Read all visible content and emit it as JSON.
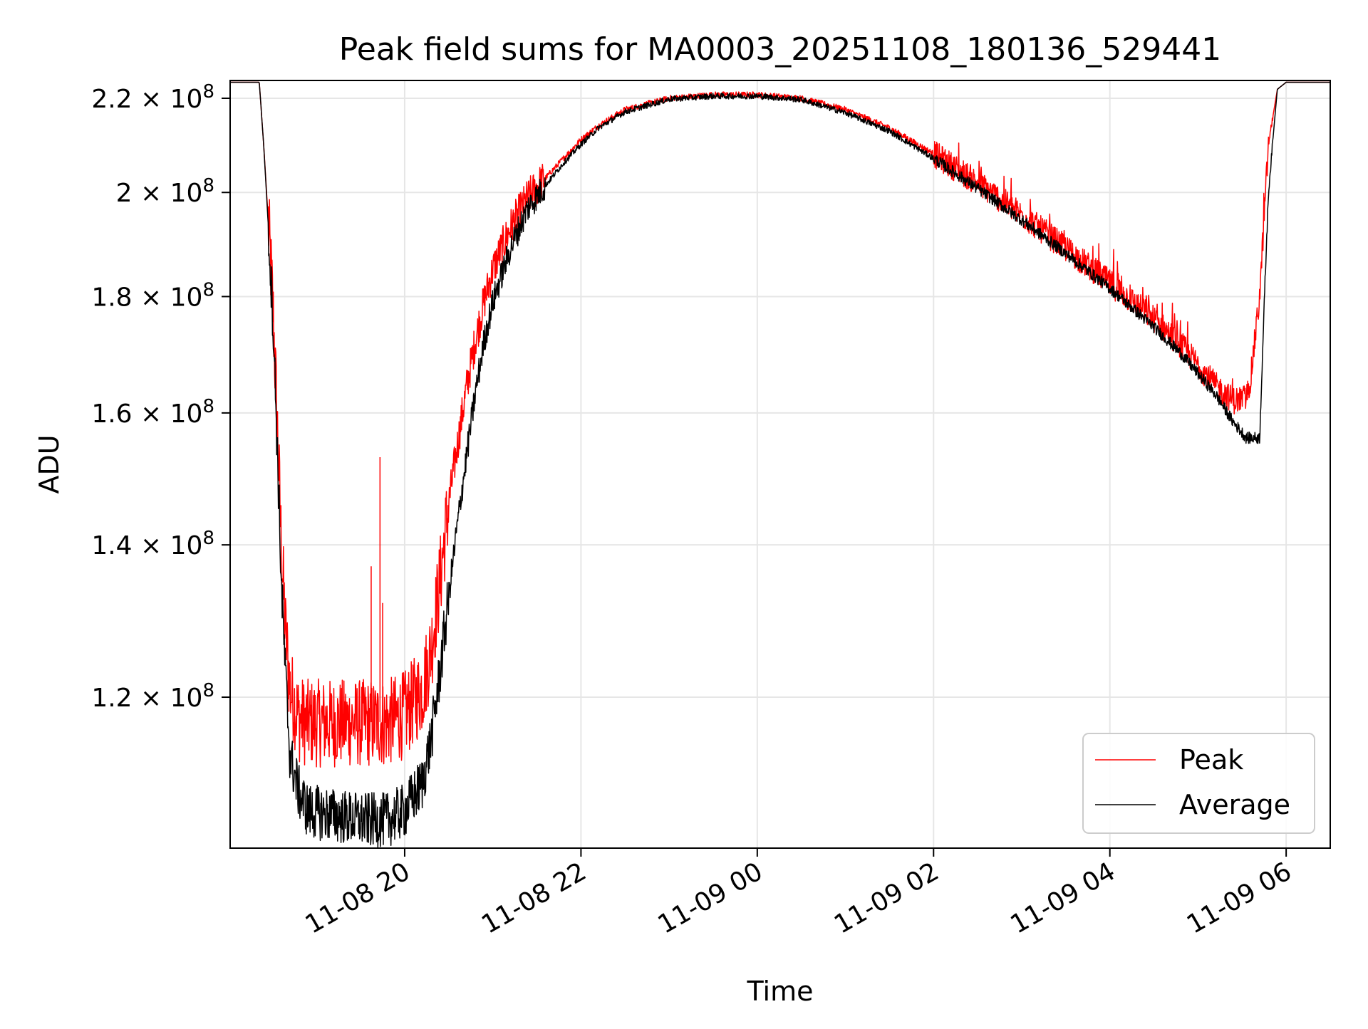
{
  "chart_data": {
    "type": "line",
    "title": "Peak field sums for MA0003_20251108_180136_529441",
    "xlabel": "Time",
    "ylabel": "ADU",
    "y_scale": "log",
    "ylim": [
      103000000,
      224000000
    ],
    "xlim_hours_from_11_08_00": [
      18.02,
      30.5
    ],
    "grid": true,
    "legend_location": "lower right",
    "x_ticks": [
      {
        "hours": 20,
        "label": "11-08 20"
      },
      {
        "hours": 22,
        "label": "11-08 22"
      },
      {
        "hours": 24,
        "label": "11-09 00"
      },
      {
        "hours": 26,
        "label": "11-09 02"
      },
      {
        "hours": 28,
        "label": "11-09 04"
      },
      {
        "hours": 30,
        "label": "11-09 06"
      }
    ],
    "y_ticks": [
      {
        "value": 120000000,
        "mantissa": "1.2",
        "base": "10",
        "exp": "8"
      },
      {
        "value": 140000000,
        "mantissa": "1.4",
        "base": "10",
        "exp": "8"
      },
      {
        "value": 160000000,
        "mantissa": "1.6",
        "base": "10",
        "exp": "8"
      },
      {
        "value": 180000000,
        "mantissa": "1.8",
        "base": "10",
        "exp": "8"
      },
      {
        "value": 200000000,
        "mantissa": "2",
        "base": "10",
        "exp": "8"
      },
      {
        "value": 220000000,
        "mantissa": "2.2",
        "base": "10",
        "exp": "8"
      }
    ],
    "series": [
      {
        "name": "Peak",
        "color": "#ff0000",
        "hours": [
          18.0,
          18.35,
          18.4,
          18.5,
          18.6,
          18.65,
          18.7,
          18.8,
          18.9,
          19.2,
          19.5,
          19.8,
          20.0,
          20.2,
          20.3,
          20.4,
          20.5,
          20.6,
          20.7,
          20.8,
          20.9,
          21.0,
          21.2,
          21.4,
          21.6,
          21.8,
          22.0,
          22.2,
          22.5,
          23.0,
          23.5,
          24.0,
          24.5,
          25.0,
          25.5,
          26.0,
          26.5,
          27.0,
          27.5,
          28.0,
          28.5,
          28.8,
          29.0,
          29.2,
          29.4,
          29.55,
          29.6,
          29.7,
          29.8,
          29.9,
          30.0,
          30.1,
          30.5
        ],
        "values": [
          223600000,
          223600000,
          210000000,
          180000000,
          140000000,
          128000000,
          121000000,
          117500000,
          117000000,
          117000000,
          117000000,
          117000000,
          118000000,
          121000000,
          126000000,
          135000000,
          146000000,
          155000000,
          164000000,
          172000000,
          179000000,
          185000000,
          193000000,
          199000000,
          203000000,
          207000000,
          211000000,
          214000000,
          217500000,
          220000000,
          220800000,
          220800000,
          220000000,
          217500000,
          213500000,
          208000000,
          202000000,
          195500000,
          189000000,
          182500000,
          176000000,
          171500000,
          168000000,
          164500000,
          162000000,
          162500000,
          166000000,
          180000000,
          210000000,
          222000000,
          223600000,
          223600000,
          223600000
        ],
        "spikes": [
          {
            "hours": 19.72,
            "value": 153000000
          },
          {
            "hours": 19.62,
            "value": 137000000
          },
          {
            "hours": 19.75,
            "value": 132000000
          }
        ]
      },
      {
        "name": "Average",
        "color": "#000000",
        "hours": [
          18.0,
          18.35,
          18.4,
          18.5,
          18.6,
          18.65,
          18.7,
          18.8,
          18.9,
          19.2,
          19.5,
          19.8,
          20.0,
          20.2,
          20.3,
          20.4,
          20.5,
          20.6,
          20.7,
          20.8,
          20.9,
          21.0,
          21.2,
          21.4,
          21.6,
          21.8,
          22.0,
          22.2,
          22.5,
          23.0,
          23.5,
          24.0,
          24.5,
          25.0,
          25.5,
          26.0,
          26.5,
          27.0,
          27.5,
          28.0,
          28.5,
          28.8,
          29.0,
          29.2,
          29.4,
          29.55,
          29.6,
          29.7,
          29.8,
          29.9,
          30.0,
          30.1,
          30.5
        ],
        "values": [
          223600000,
          223600000,
          210000000,
          178000000,
          135000000,
          122000000,
          113000000,
          109000000,
          107000000,
          106500000,
          106000000,
          106000000,
          107000000,
          110000000,
          115000000,
          123000000,
          133000000,
          143000000,
          153000000,
          163000000,
          172000000,
          179000000,
          189000000,
          197000000,
          201500000,
          206000000,
          210000000,
          213500000,
          217000000,
          219800000,
          220500000,
          220500000,
          219700000,
          216800000,
          212800000,
          207000000,
          200800000,
          194500000,
          188000000,
          181500000,
          174500000,
          170000000,
          166500000,
          163000000,
          158500000,
          156000000,
          156000000,
          156000000,
          200000000,
          222000000,
          223600000,
          223600000,
          223600000
        ]
      }
    ]
  }
}
